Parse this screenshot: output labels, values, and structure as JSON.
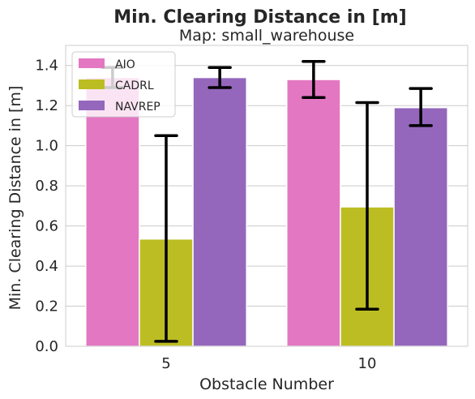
{
  "chart_data": {
    "type": "bar",
    "title": "Min. Clearing Distance in [m]",
    "subtitle": "Map: small_warehouse",
    "xlabel": "Obstacle Number",
    "ylabel": "Min. Clearing Distance in [m]",
    "categories": [
      "5",
      "10"
    ],
    "ylim": [
      0,
      1.5
    ],
    "yticks": [
      "0.0",
      "0.2",
      "0.4",
      "0.6",
      "0.8",
      "1.0",
      "1.2",
      "1.4"
    ],
    "grid": true,
    "legend_position": "top-left",
    "series": [
      {
        "name": "AIO",
        "color": "#e377c2",
        "values": [
          1.34,
          1.33
        ],
        "err_low": [
          1.29,
          1.24
        ],
        "err_high": [
          1.39,
          1.42
        ]
      },
      {
        "name": "CADRL",
        "color": "#bcbd22",
        "values": [
          0.535,
          0.695
        ],
        "err_low": [
          0.025,
          0.185
        ],
        "err_high": [
          1.05,
          1.215
        ]
      },
      {
        "name": "NAVREP",
        "color": "#9467bd",
        "values": [
          1.34,
          1.19
        ],
        "err_low": [
          1.29,
          1.1
        ],
        "err_high": [
          1.39,
          1.285
        ]
      }
    ]
  }
}
